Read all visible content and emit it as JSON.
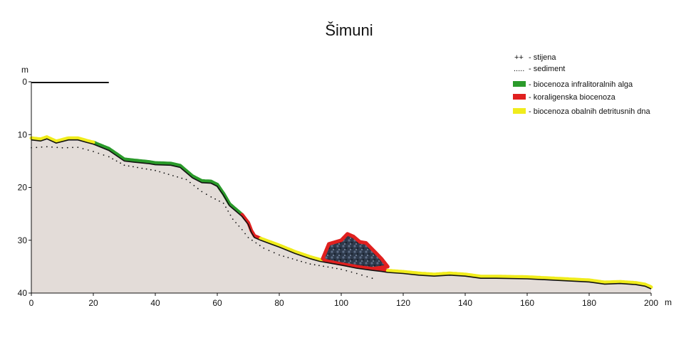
{
  "chart_data": {
    "type": "area",
    "title": "Šimuni",
    "xlabel": "",
    "ylabel": "",
    "x_unit": "m",
    "y_unit": "m",
    "xlim": [
      0,
      200
    ],
    "ylim": [
      0,
      40
    ],
    "y_inverted": true,
    "x_ticks": [
      "0",
      "20",
      "40",
      "60",
      "80",
      "100",
      "120",
      "140",
      "160",
      "180",
      "200"
    ],
    "y_ticks": [
      "0",
      "10",
      "20",
      "30",
      "40"
    ],
    "sea_level_line": {
      "x_from": 0,
      "x_to": 25,
      "depth": 0
    },
    "profile": {
      "x": [
        0,
        3,
        5,
        8,
        12,
        15,
        18,
        20,
        25,
        30,
        33,
        38,
        40,
        45,
        48,
        52,
        55,
        58,
        60,
        62,
        64,
        66,
        68,
        70,
        71,
        72,
        74,
        80,
        85,
        90,
        93,
        97,
        100,
        105,
        110,
        113,
        115,
        120,
        125,
        130,
        135,
        140,
        145,
        150,
        160,
        170,
        180,
        185,
        190,
        195,
        198,
        200
      ],
      "depth": [
        11,
        11.2,
        10.8,
        11.6,
        11,
        11,
        11.5,
        11.8,
        13,
        15,
        15.2,
        15.5,
        15.7,
        15.8,
        16.2,
        18.2,
        19.1,
        19.2,
        19.8,
        21.5,
        23.5,
        24.5,
        25.5,
        27,
        28.5,
        29.5,
        30,
        31.3,
        32.5,
        33.5,
        34,
        34.4,
        34.7,
        35.3,
        35.7,
        35.9,
        36.1,
        36.3,
        36.6,
        36.8,
        36.6,
        36.8,
        37.2,
        37.2,
        37.3,
        37.6,
        37.9,
        38.3,
        38.2,
        38.4,
        38.7,
        39.2
      ]
    },
    "sediment_line": {
      "x": [
        0,
        5,
        10,
        15,
        20,
        25,
        30,
        40,
        50,
        55,
        58,
        62,
        65,
        68,
        70,
        75,
        80,
        90,
        100,
        105,
        110,
        112
      ],
      "depth": [
        12.5,
        12.3,
        12.5,
        12.4,
        13.2,
        14.2,
        15.8,
        16.8,
        18.5,
        20.8,
        21.8,
        23,
        26,
        28,
        29.5,
        31.5,
        32.8,
        34.5,
        35.5,
        36.3,
        37.2,
        37.6
      ]
    },
    "rock_outcrop": {
      "label": "stijena",
      "x": [
        94,
        96,
        100,
        102,
        104,
        106,
        108,
        111,
        113,
        115,
        110,
        105,
        100,
        95
      ],
      "depth": [
        33.5,
        30.7,
        30,
        28.8,
        29.3,
        30.3,
        30.5,
        32.3,
        33.5,
        35,
        35.4,
        35,
        34.5,
        33.9
      ]
    },
    "series": [
      {
        "name": "biocenoza infralitoralnih alga",
        "color": "#2a9a2a",
        "segments": [
          [
            20,
            69
          ]
        ]
      },
      {
        "name": "koraligenska biocenoza",
        "color": "#e0201f",
        "segments": [
          [
            68,
            74
          ],
          [
            94,
            115
          ]
        ]
      },
      {
        "name": "biocenoza obalnih detritusnih dna",
        "color": "#f0ec1c",
        "segments": [
          [
            0,
            20
          ],
          [
            74,
            94
          ],
          [
            115,
            200
          ]
        ]
      }
    ],
    "legend": {
      "position": "top-right",
      "items": [
        {
          "symbol": "++",
          "label": "stijena"
        },
        {
          "symbol": ".....",
          "label": "sediment"
        },
        {
          "symbol_color": "#2a9a2a",
          "label": "biocenoza infralitoralnih alga"
        },
        {
          "symbol_color": "#e0201f",
          "label": "koraligenska biocenoza"
        },
        {
          "symbol_color": "#f0ec1c",
          "label": "biocenoza obalnih detritusnih dna"
        }
      ]
    },
    "grid": false
  }
}
